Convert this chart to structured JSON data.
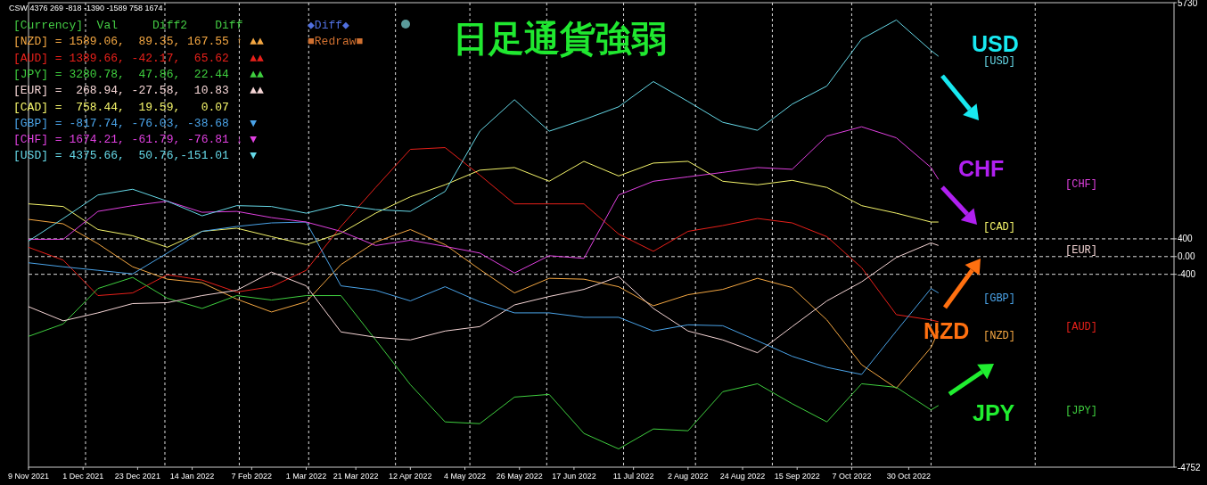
{
  "chart_data": {
    "type": "line",
    "title": "日足通貨強弱",
    "x": [
      "2021-11-09",
      "2021-11-23",
      "2021-12-07",
      "2021-12-21",
      "2022-01-04",
      "2022-01-18",
      "2022-02-01",
      "2022-02-15",
      "2022-03-01",
      "2022-03-15",
      "2022-03-29",
      "2022-04-12",
      "2022-04-26",
      "2022-05-10",
      "2022-05-24",
      "2022-06-07",
      "2022-06-21",
      "2022-07-05",
      "2022-07-19",
      "2022-08-02",
      "2022-08-16",
      "2022-08-30",
      "2022-09-13",
      "2022-09-27",
      "2022-10-11",
      "2022-10-25",
      "2022-11-08",
      "2022-11-11"
    ],
    "series": [
      {
        "name": "[NZD]",
        "color": "#f4a742",
        "values": [
          840,
          740,
          290,
          -230,
          -510,
          -590,
          -960,
          -1250,
          -1020,
          -180,
          330,
          610,
          270,
          -290,
          -820,
          -490,
          -510,
          -680,
          -1110,
          -860,
          -740,
          -490,
          -700,
          -1430,
          -2440,
          -2970,
          -2050,
          -1680
        ]
      },
      {
        "name": "[AUD]",
        "color": "#e8201a",
        "values": [
          210,
          -80,
          -880,
          -820,
          -410,
          -530,
          -800,
          -680,
          -310,
          680,
          1560,
          2420,
          2460,
          1840,
          1190,
          1190,
          1190,
          510,
          120,
          570,
          700,
          860,
          760,
          450,
          -250,
          -1310,
          -1430,
          -1470
        ]
      },
      {
        "name": "[JPY]",
        "color": "#3fcf3f",
        "values": [
          -1800,
          -1520,
          -720,
          -470,
          -940,
          -1170,
          -880,
          -980,
          -880,
          -880,
          -1880,
          -2890,
          -3730,
          -3770,
          -3170,
          -3110,
          -3990,
          -4340,
          -3890,
          -3930,
          -3050,
          -2870,
          -3320,
          -3730,
          -2870,
          -2950,
          -3460,
          -3360
        ]
      },
      {
        "name": "[EUR]",
        "color": "#f5d5d5",
        "values": [
          -1130,
          -1450,
          -1270,
          -1060,
          -1040,
          -880,
          -760,
          -350,
          -660,
          -1700,
          -1820,
          -1880,
          -1680,
          -1580,
          -1090,
          -900,
          -740,
          -450,
          -1170,
          -1680,
          -1880,
          -2170,
          -1580,
          -1000,
          -570,
          -20,
          310,
          250
        ]
      },
      {
        "name": "[CAD]",
        "color": "#f5f56b",
        "values": [
          1190,
          1130,
          610,
          470,
          210,
          570,
          640,
          450,
          270,
          530,
          980,
          1350,
          1620,
          1950,
          2010,
          1700,
          2150,
          1820,
          2110,
          2150,
          1700,
          1620,
          1720,
          1560,
          1150,
          980,
          780,
          780
        ]
      },
      {
        "name": "[GBP]",
        "color": "#4aa3e8",
        "values": [
          -140,
          -230,
          -310,
          -390,
          80,
          570,
          680,
          760,
          780,
          -660,
          -760,
          -1000,
          -680,
          -1020,
          -1270,
          -1270,
          -1370,
          -1370,
          -1680,
          -1540,
          -1560,
          -1900,
          -2250,
          -2500,
          -2660,
          -1680,
          -720,
          -820
        ]
      },
      {
        "name": "[CHF]",
        "color": "#e040e0",
        "values": [
          390,
          390,
          1020,
          1150,
          1250,
          1000,
          1020,
          880,
          780,
          570,
          250,
          370,
          230,
          80,
          -370,
          20,
          -40,
          1390,
          1700,
          1800,
          1900,
          2010,
          1970,
          2720,
          2930,
          2680,
          2010,
          1740
        ]
      },
      {
        "name": "[USD]",
        "color": "#66d9e8",
        "values": [
          350,
          860,
          1390,
          1520,
          1250,
          920,
          1150,
          1130,
          980,
          1170,
          1060,
          1020,
          1470,
          2830,
          3540,
          2830,
          3090,
          3380,
          3950,
          3500,
          3030,
          2850,
          3440,
          3850,
          4910,
          5340,
          4650,
          4520
        ]
      }
    ],
    "xlim": [
      "2021-11-09",
      "2023-02-14"
    ],
    "xticks": [
      {
        "value": "2021-11-09",
        "label": "9 Nov 2021"
      },
      {
        "value": "2021-12-01",
        "label": "1 Dec 2021"
      },
      {
        "value": "2021-12-23",
        "label": "23 Dec 2021"
      },
      {
        "value": "2022-01-14",
        "label": "14 Jan 2022"
      },
      {
        "value": "2022-02-07",
        "label": "7 Feb 2022"
      },
      {
        "value": "2022-03-01",
        "label": "1 Mar 2022"
      },
      {
        "value": "2022-03-21",
        "label": "21 Mar 2022"
      },
      {
        "value": "2022-04-12",
        "label": "12 Apr 2022"
      },
      {
        "value": "2022-05-04",
        "label": "4 May 2022"
      },
      {
        "value": "2022-05-26",
        "label": "26 May 2022"
      },
      {
        "value": "2022-06-17",
        "label": "17 Jun 2022"
      },
      {
        "value": "2022-07-11",
        "label": "11 Jul 2022"
      },
      {
        "value": "2022-08-02",
        "label": "2 Aug 2022"
      },
      {
        "value": "2022-08-24",
        "label": "24 Aug 2022"
      },
      {
        "value": "2022-09-15",
        "label": "15 Sep 2022"
      },
      {
        "value": "2022-10-07",
        "label": "7 Oct 2022"
      },
      {
        "value": "2022-10-30",
        "label": "30 Oct 2022"
      },
      {
        "value": "2021-12-02",
        "label": null
      },
      {
        "value": "2022-01-03",
        "label": null
      },
      {
        "value": "2022-02-02",
        "label": null
      },
      {
        "value": "2022-03-02",
        "label": null
      },
      {
        "value": "2022-04-06",
        "label": null
      },
      {
        "value": "2022-05-06",
        "label": null
      },
      {
        "value": "2022-06-06",
        "label": null
      },
      {
        "value": "2022-07-07",
        "label": null
      },
      {
        "value": "2022-08-05",
        "label": null
      },
      {
        "value": "2022-09-05",
        "label": null
      },
      {
        "value": "2022-10-07",
        "label": null
      },
      {
        "value": "2022-11-08",
        "label": null
      },
      {
        "value": "2022-12-20",
        "label": null
      }
    ],
    "ylim": [
      -4752,
      5730
    ],
    "yticks": [
      5730,
      400,
      {
        "value": 0,
        "label": "0.00"
      },
      -400,
      -4752
    ],
    "grid": "x",
    "ref_lines": [
      {
        "axis": "y",
        "value": 400,
        "line_style": "dashed"
      },
      {
        "axis": "y",
        "value": 0,
        "line_style": "dashed"
      },
      {
        "axis": "y",
        "value": -400,
        "line_style": "dashed"
      }
    ],
    "annotations": [
      "CSW 4376 269 -818 -1390 -1589 758 1674",
      "[Currency]  Val     Diff2    Diff",
      "[NZD] = 1589.06,  89.35, 167.55 ↑ ▲▲",
      "[AUD] = 1389.66, -42.17,  65.62   ▲▲",
      "[JPY] = 3280.78,  47.86,  22.44   ▲▲",
      "[EUR] =  268.94, -27.58,  10.83   ▲▲",
      "[CAD] =  758.44,  19.59,   0.07",
      "[GBP] = -817.74, -76.03, -38.68   ▼",
      "[CHF] = 1674.21, -61.79, -76.81 ↓ ▼",
      "[USD] = 4375.66,  50.76,-151.01   ▼",
      "◆Diff◆",
      "■Redraw■",
      "USD",
      "CHF",
      "NZD",
      "JPY"
    ]
  }
}
